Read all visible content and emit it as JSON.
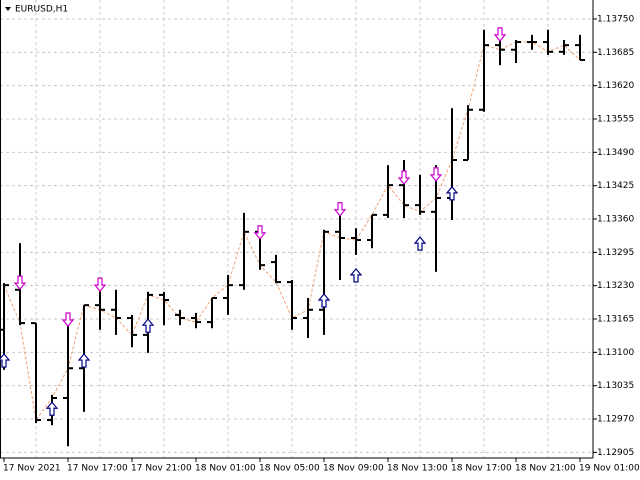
{
  "chart_data": {
    "type": "ohlc",
    "title": "EURUSD,H1",
    "categories": [
      "17 Nov 2021",
      null,
      null,
      null,
      "17 Nov 17:00",
      null,
      null,
      null,
      "17 Nov 21:00",
      null,
      null,
      null,
      "18 Nov 01:00",
      null,
      null,
      null,
      "18 Nov 05:00",
      null,
      null,
      null,
      "18 Nov 09:00",
      null,
      null,
      null,
      "18 Nov 13:00",
      null,
      null,
      null,
      "18 Nov 17:00",
      null,
      null,
      null,
      "18 Nov 21:00",
      null,
      null,
      null,
      "19 Nov 01:00"
    ],
    "open": [
      1.13144,
      1.13222,
      1.13157,
      1.12968,
      1.13011,
      1.13069,
      1.13192,
      1.13183,
      1.13167,
      1.13134,
      1.13212,
      1.13173,
      1.13167,
      1.13159,
      1.13206,
      1.13231,
      1.13335,
      1.13276,
      1.13237,
      1.13167,
      1.13183,
      1.13335,
      1.13323,
      1.13319,
      1.13368,
      1.13426,
      1.13387,
      1.13374,
      1.13401,
      1.13475,
      1.13573,
      1.13699,
      1.1369,
      1.13705,
      1.13705,
      1.13686,
      1.13699
    ],
    "high": [
      1.13235,
      1.13313,
      1.13157,
      1.13017,
      1.13173,
      1.13192,
      1.13222,
      1.13222,
      1.13173,
      1.13218,
      1.13218,
      1.13183,
      1.13177,
      1.13206,
      1.13251,
      1.13372,
      1.13339,
      1.1329,
      1.13241,
      1.13206,
      1.13339,
      1.13372,
      1.13342,
      1.13368,
      1.13465,
      1.13475,
      1.13446,
      1.13465,
      1.13576,
      1.13582,
      1.13729,
      1.13725,
      1.13709,
      1.13719,
      1.13729,
      1.13709,
      1.13719
    ],
    "low": [
      1.13066,
      1.13153,
      1.12962,
      1.12958,
      1.12917,
      1.12984,
      1.13144,
      1.13134,
      1.1311,
      1.13099,
      1.13153,
      1.13153,
      1.13147,
      1.13147,
      1.13173,
      1.13222,
      1.13261,
      1.13235,
      1.13144,
      1.13128,
      1.13134,
      1.13241,
      1.1329,
      1.13303,
      1.13362,
      1.13362,
      1.13368,
      1.13257,
      1.13358,
      1.13475,
      1.13569,
      1.1366,
      1.13664,
      1.1369,
      1.1368,
      1.1368,
      1.1367
    ],
    "close": [
      1.13231,
      1.13157,
      1.12968,
      1.13011,
      1.13069,
      1.13192,
      1.13183,
      1.13167,
      1.13134,
      1.13212,
      1.13202,
      1.13167,
      1.13159,
      1.13206,
      1.13231,
      1.13335,
      1.1327,
      1.13237,
      1.13167,
      1.13183,
      1.13335,
      1.13323,
      1.13319,
      1.13368,
      1.13426,
      1.13387,
      1.13374,
      1.13401,
      1.13475,
      1.13573,
      1.13699,
      1.1369,
      1.13705,
      1.13705,
      1.13686,
      1.13699,
      1.1367
    ],
    "sell_signals": [
      null,
      1.13235,
      null,
      null,
      1.13163,
      null,
      1.13231,
      null,
      null,
      null,
      null,
      null,
      null,
      null,
      null,
      null,
      1.13333,
      null,
      null,
      null,
      null,
      1.13378,
      null,
      null,
      null,
      1.1344,
      null,
      1.13446,
      null,
      null,
      null,
      1.13719,
      null,
      null,
      null,
      null,
      null
    ],
    "buy_signals": [
      1.13085,
      null,
      null,
      1.12991,
      null,
      1.13085,
      null,
      null,
      null,
      1.13153,
      null,
      null,
      null,
      null,
      null,
      null,
      null,
      null,
      null,
      null,
      1.13202,
      null,
      1.13251,
      null,
      null,
      null,
      1.13313,
      null,
      1.13411,
      null,
      null,
      null,
      null,
      null,
      null,
      null,
      null
    ],
    "bar_color": "#000000",
    "sell_color": "#cc00cc",
    "buy_color": "#000080",
    "line_color": "#f0a070",
    "ylim": [
      1.12894,
      1.13787
    ],
    "yticks": [
      {
        "value": 1.1375,
        "label": "1.13750"
      },
      {
        "value": 1.13685,
        "label": "1.13685"
      },
      {
        "value": 1.1362,
        "label": "1.13620"
      },
      {
        "value": 1.13555,
        "label": "1.13555"
      },
      {
        "value": 1.1349,
        "label": "1.13490"
      },
      {
        "value": 1.13425,
        "label": "1.13425"
      },
      {
        "value": 1.1336,
        "label": "1.13360"
      },
      {
        "value": 1.13295,
        "label": "1.13295"
      },
      {
        "value": 1.1323,
        "label": "1.13230"
      },
      {
        "value": 1.13165,
        "label": "1.13165"
      },
      {
        "value": 1.131,
        "label": "1.13100"
      },
      {
        "value": 1.13035,
        "label": "1.13035"
      },
      {
        "value": 1.1297,
        "label": "1.12970"
      },
      {
        "value": 1.12905,
        "label": "1.12905"
      }
    ],
    "grid": true
  }
}
